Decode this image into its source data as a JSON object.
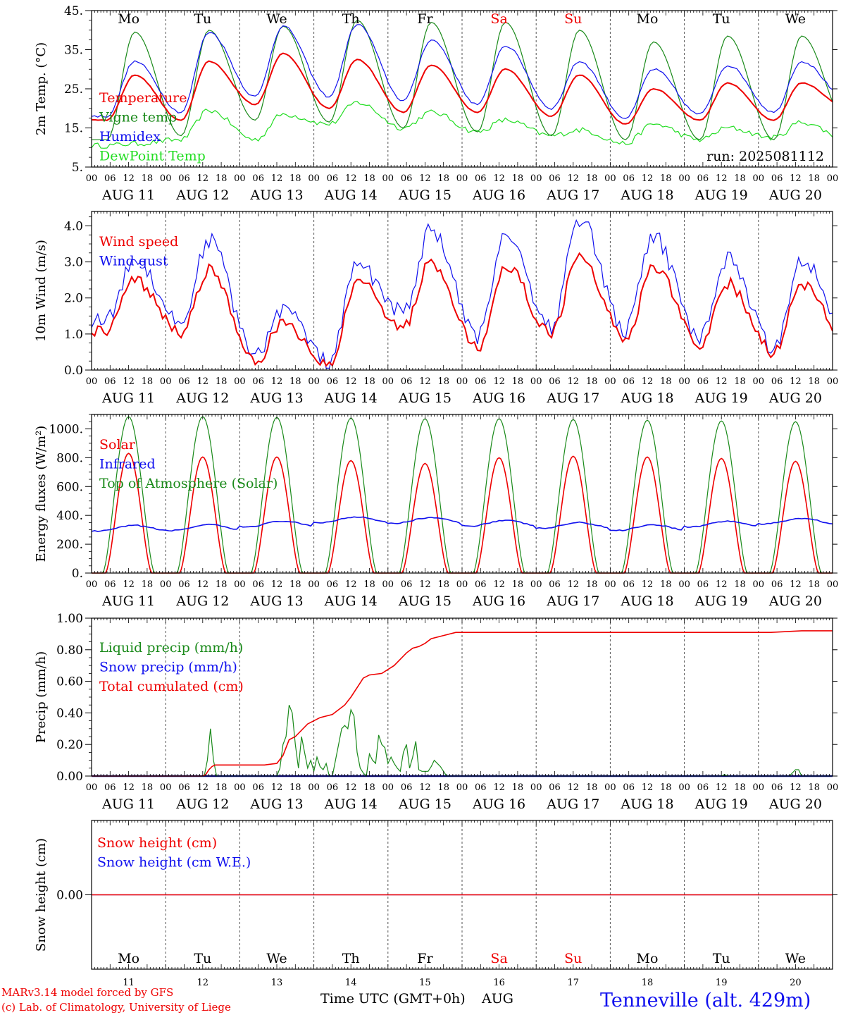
{
  "colors": {
    "red": "#ee0000",
    "green": "#1a8a1a",
    "blue": "#1010ee",
    "lime": "#22dd22",
    "black": "#000000"
  },
  "days": [
    {
      "abbr": "Mo",
      "num": "11",
      "weekend": false
    },
    {
      "abbr": "Tu",
      "num": "12",
      "weekend": false
    },
    {
      "abbr": "We",
      "num": "13",
      "weekend": false
    },
    {
      "abbr": "Th",
      "num": "14",
      "weekend": false
    },
    {
      "abbr": "Fr",
      "num": "15",
      "weekend": false
    },
    {
      "abbr": "Sa",
      "num": "16",
      "weekend": true
    },
    {
      "abbr": "Su",
      "num": "17",
      "weekend": true
    },
    {
      "abbr": "Mo",
      "num": "18",
      "weekend": false
    },
    {
      "abbr": "Tu",
      "num": "19",
      "weekend": false
    },
    {
      "abbr": "We",
      "num": "20",
      "weekend": false
    }
  ],
  "hour_ticks": [
    "00",
    "06",
    "12",
    "18"
  ],
  "end_hour_tick": "00",
  "date_labels": [
    "AUG 11",
    "AUG 12",
    "AUG 13",
    "AUG 14",
    "AUG 15",
    "AUG 16",
    "AUG 17",
    "AUG 18",
    "AUG 19",
    "AUG 20"
  ],
  "footer": {
    "model": "MARv3.14 model forced by GFS",
    "copyright": "(c) Lab. of Climatology, University of Liege",
    "axis_title": "Time UTC (GMT+0h)",
    "month": "AUG",
    "station": "Tenneville (alt. 429m)"
  },
  "chart_data": [
    {
      "type": "line",
      "panel": "temperature",
      "ylabel": "2m Temp. (°C)",
      "ylim": [
        5,
        45
      ],
      "ytick_labels": [
        "5.",
        "15.",
        "25.",
        "35.",
        "45."
      ],
      "run_label": "run: 2025081112",
      "legend": [
        "Temperature",
        "Vigne temp",
        "Humidex",
        "DewPoint Temp"
      ],
      "series": [
        {
          "name": "Temperature",
          "color": "red",
          "min": [
            17,
            17,
            21,
            20,
            19,
            19,
            18,
            16,
            17,
            17
          ],
          "max": [
            28.5,
            32,
            34,
            32.5,
            31,
            30,
            28.5,
            25,
            26.5,
            26.5
          ],
          "end": 20
        },
        {
          "name": "Vigne temp",
          "color": "green",
          "min": [
            12,
            13,
            17,
            16.5,
            15,
            14,
            13,
            12,
            12,
            12
          ],
          "max": [
            39.5,
            40,
            41,
            42.5,
            42,
            42,
            40,
            37,
            38.5,
            38.5
          ],
          "end": 16
        },
        {
          "name": "Humidex",
          "color": "blue",
          "min": [
            18,
            19,
            23,
            23,
            22,
            21,
            20,
            17.5,
            18.5,
            19
          ],
          "max": [
            32,
            39.5,
            41,
            41.5,
            37.5,
            36,
            32,
            30,
            31,
            32
          ],
          "end": 22
        },
        {
          "name": "DewPoint Temp",
          "color": "lime",
          "min": [
            10.5,
            12,
            12,
            16,
            15,
            14,
            13,
            11,
            12,
            12.5
          ],
          "max": [
            11,
            19.5,
            18.5,
            21.5,
            19,
            17,
            14.5,
            16,
            15,
            16.5
          ],
          "end": 12
        }
      ]
    },
    {
      "type": "line",
      "panel": "wind",
      "ylabel": "10m Wind (m/s)",
      "ylim": [
        0,
        4.4
      ],
      "ytick_labels": [
        "0.0",
        "1.0",
        "2.0",
        "3.0",
        "4.0"
      ],
      "legend": [
        "Wind speed",
        "Wind gust"
      ],
      "series": [
        {
          "name": "Wind speed",
          "color": "red",
          "min": [
            1.1,
            1.0,
            0.2,
            0.1,
            1.2,
            0.6,
            1.0,
            0.9,
            0.7,
            0.5
          ],
          "max": [
            2.5,
            2.8,
            1.3,
            2.5,
            3.0,
            2.9,
            3.2,
            2.9,
            2.4,
            2.4
          ],
          "end": 0.7
        },
        {
          "name": "Wind gust",
          "color": "blue",
          "min": [
            1.4,
            1.3,
            0.4,
            0.2,
            1.6,
            0.9,
            1.2,
            1.1,
            0.9,
            0.6
          ],
          "max": [
            3.1,
            3.6,
            1.7,
            2.9,
            3.9,
            3.8,
            4.2,
            3.7,
            3.1,
            3.1
          ],
          "end": 1.0
        }
      ]
    },
    {
      "type": "line",
      "panel": "energy",
      "ylabel": "Energy fluxes (W/m²)",
      "ylim": [
        0,
        1100
      ],
      "ytick_labels": [
        "0.",
        "200.",
        "400.",
        "600.",
        "800.",
        "1000."
      ],
      "legend": [
        "Solar",
        "Infrared",
        "Top of Atmosphere (Solar)"
      ],
      "series": [
        {
          "name": "Solar",
          "color": "red",
          "max": [
            830,
            805,
            805,
            780,
            760,
            800,
            810,
            805,
            795,
            775
          ]
        },
        {
          "name": "Infrared",
          "color": "blue",
          "values": [
            310,
            315,
            340,
            370,
            365,
            345,
            330,
            315,
            340,
            360
          ]
        },
        {
          "name": "Top of Atmosphere (Solar)",
          "color": "green",
          "max": [
            1085,
            1085,
            1080,
            1075,
            1070,
            1070,
            1065,
            1060,
            1055,
            1050
          ]
        }
      ]
    },
    {
      "type": "line",
      "panel": "precip",
      "ylabel": "Precip (mm/h)",
      "ylim": [
        0,
        1
      ],
      "ytick_labels": [
        "0.00",
        "0.20",
        "0.40",
        "0.60",
        "0.80",
        "1.00"
      ],
      "legend": [
        "Liquid precip (mm/h)",
        "Snow precip (mm/h)",
        "Total cumulated (cm)"
      ],
      "series": [
        {
          "name": "Liquid precip (mm/h)",
          "color": "green",
          "x": [
            0,
            36.5,
            37.5,
            38.5,
            39.5,
            40.5,
            60,
            61,
            62,
            63,
            64,
            65,
            66,
            67,
            68,
            69,
            70,
            71,
            72,
            73,
            74,
            75,
            76,
            77,
            78,
            80,
            81,
            82,
            83,
            84,
            85,
            86,
            87,
            88,
            89,
            90,
            91,
            92,
            93,
            94,
            95,
            96,
            97,
            98,
            99,
            100,
            101,
            102,
            103,
            104,
            105,
            106,
            107,
            108,
            109,
            110,
            111,
            112,
            113,
            114,
            115,
            204,
            205,
            206,
            226,
            227,
            228,
            229,
            230,
            240
          ],
          "y": [
            0,
            0,
            0.1,
            0.3,
            0.1,
            0,
            0,
            0.05,
            0.2,
            0.25,
            0.45,
            0.4,
            0.2,
            0.05,
            0.25,
            0.15,
            0.05,
            0.1,
            0.03,
            0.12,
            0.06,
            0.04,
            0.08,
            0,
            0,
            0.2,
            0.3,
            0.32,
            0.3,
            0.42,
            0.38,
            0.15,
            0.05,
            0.02,
            0,
            0.14,
            0.1,
            0.08,
            0.26,
            0.2,
            0.18,
            0.08,
            0.12,
            0.08,
            0.05,
            0.03,
            0.15,
            0.2,
            0.05,
            0.12,
            0.22,
            0.04,
            0.03,
            0.03,
            0.03,
            0.06,
            0.1,
            0.08,
            0.06,
            0.03,
            0,
            0,
            0.01,
            0,
            0,
            0.02,
            0.04,
            0.04,
            0,
            0
          ]
        },
        {
          "name": "Snow precip (mm/h)",
          "color": "blue",
          "x": [
            0,
            240
          ],
          "y": [
            0,
            0
          ]
        },
        {
          "name": "Total cumulated (cm)",
          "color": "red",
          "x": [
            0,
            36,
            37,
            38,
            39,
            40,
            42,
            48,
            56,
            60,
            62,
            63,
            64,
            65,
            66,
            68,
            70,
            72,
            74,
            78,
            82,
            84,
            86,
            88,
            90,
            94,
            98,
            102,
            104,
            106,
            108,
            110,
            112,
            114,
            116,
            118,
            120,
            140,
            200,
            220,
            230,
            234,
            240
          ],
          "y": [
            0,
            0,
            0.01,
            0.04,
            0.06,
            0.07,
            0.07,
            0.07,
            0.07,
            0.08,
            0.13,
            0.18,
            0.23,
            0.24,
            0.25,
            0.29,
            0.33,
            0.35,
            0.37,
            0.39,
            0.45,
            0.5,
            0.56,
            0.62,
            0.64,
            0.65,
            0.7,
            0.78,
            0.81,
            0.82,
            0.84,
            0.87,
            0.88,
            0.89,
            0.9,
            0.91,
            0.91,
            0.91,
            0.91,
            0.91,
            0.92,
            0.92,
            0.92
          ]
        }
      ]
    },
    {
      "type": "line",
      "panel": "snow",
      "ylabel": "Snow height (cm)",
      "ylim": [
        -1,
        1
      ],
      "ytick_labels": [
        "0.00"
      ],
      "legend": [
        "Snow height (cm)",
        "Snow height (cm W.E.)"
      ],
      "series": [
        {
          "name": "Snow height (cm)",
          "color": "red",
          "x": [
            0,
            240
          ],
          "y": [
            0,
            0
          ]
        },
        {
          "name": "Snow height (cm W.E.)",
          "color": "blue",
          "x": [
            0,
            240
          ],
          "y": [
            0,
            0
          ]
        }
      ]
    }
  ]
}
